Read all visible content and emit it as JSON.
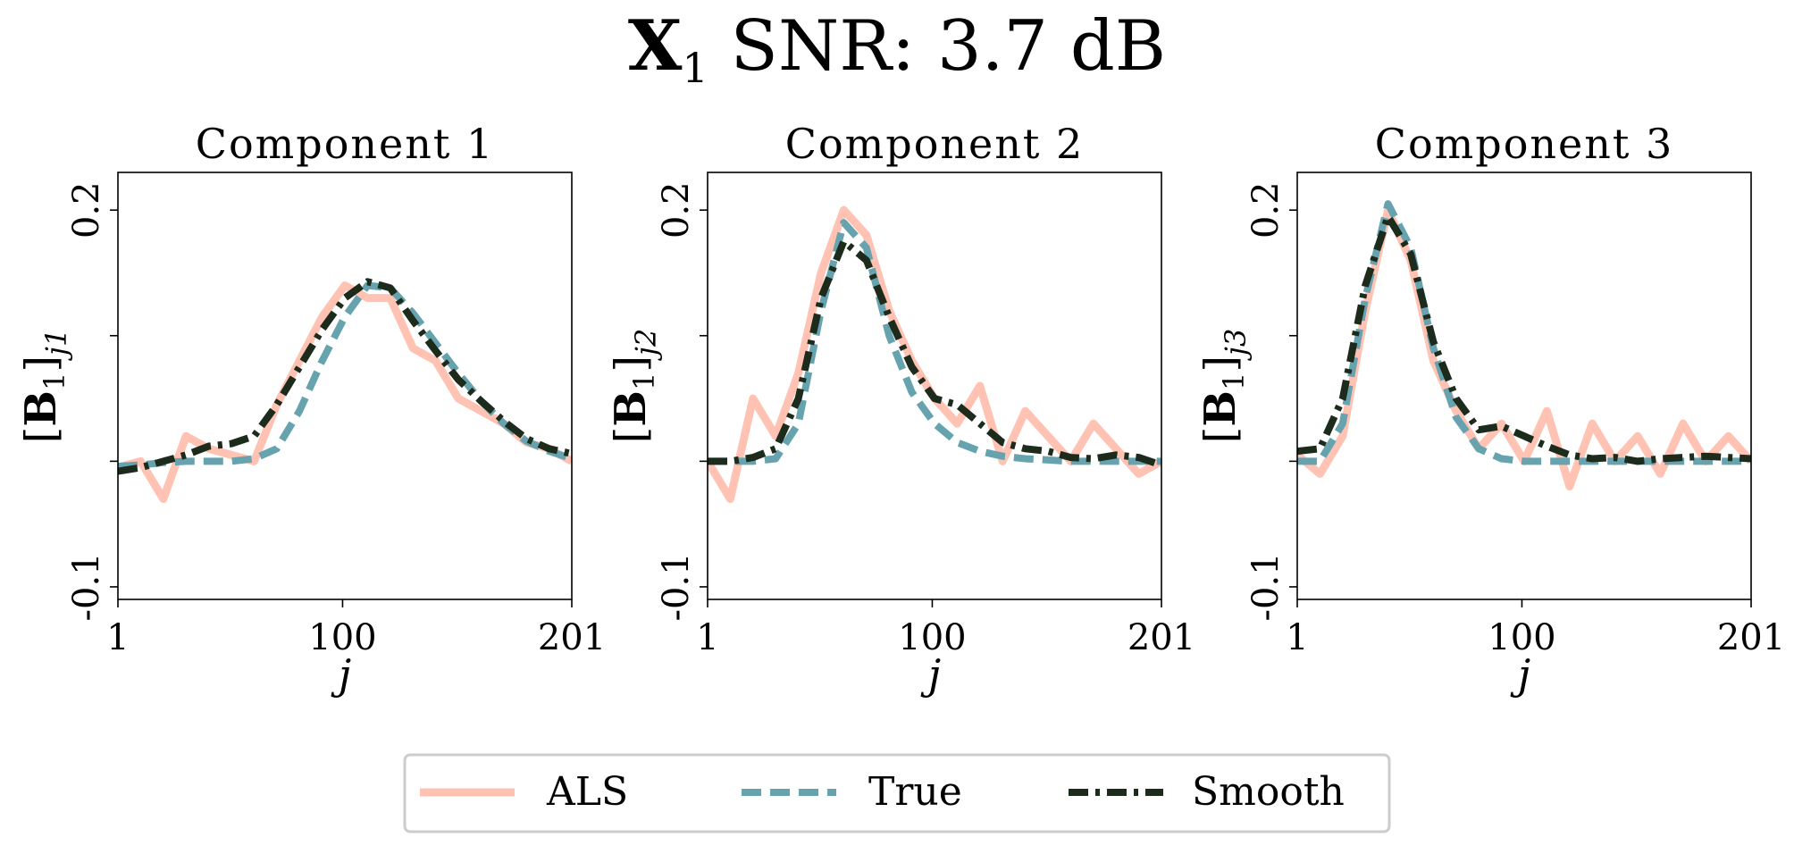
{
  "figure": {
    "title": "X₁ SNR: 3.7 dB",
    "title_parts": {
      "matrix": "X",
      "subscript": "1",
      "rest": " SNR: 3.7 dB"
    },
    "background": "#ffffff"
  },
  "legend": {
    "placement": "bottom-center",
    "entries": [
      "ALS",
      "True",
      "Smooth"
    ]
  },
  "colors": {
    "ALS": "#FFC2B3",
    "True": "#66A3AE",
    "Smooth": "#1C2B1C"
  },
  "chart_data": [
    {
      "type": "line",
      "title": "Component 1",
      "xlabel": "j",
      "ylabel": "[B1]j1",
      "ylabel_parts": {
        "base": "B",
        "base_sub": "1",
        "sub": "j1"
      },
      "xlim": [
        1,
        201
      ],
      "ylim": [
        -0.11,
        0.23
      ],
      "xticks": [
        1,
        100,
        201
      ],
      "xticklabels": [
        "1",
        "100",
        "201"
      ],
      "yticks": [
        -0.1,
        0.0,
        0.1,
        0.2
      ],
      "yticklabels": [
        "-0.1",
        "",
        "",
        "0.2"
      ],
      "grid": false,
      "series": [
        {
          "name": "ALS",
          "style": "solid",
          "x": [
            1,
            11,
            21,
            31,
            41,
            51,
            61,
            71,
            81,
            91,
            101,
            111,
            121,
            131,
            141,
            151,
            161,
            171,
            181,
            191,
            201
          ],
          "y": [
            -0.005,
            0.0,
            -0.03,
            0.02,
            0.01,
            0.005,
            0.0,
            0.045,
            0.08,
            0.115,
            0.14,
            0.13,
            0.13,
            0.09,
            0.08,
            0.05,
            0.04,
            0.03,
            0.015,
            0.01,
            0.0
          ]
        },
        {
          "name": "True",
          "style": "dashed",
          "x": [
            1,
            11,
            21,
            31,
            41,
            51,
            61,
            71,
            81,
            91,
            101,
            111,
            121,
            131,
            141,
            151,
            161,
            171,
            181,
            191,
            201
          ],
          "y": [
            -0.004,
            -0.003,
            -0.001,
            0.0,
            0.0,
            0.0,
            0.002,
            0.01,
            0.04,
            0.08,
            0.115,
            0.14,
            0.138,
            0.118,
            0.094,
            0.07,
            0.048,
            0.03,
            0.016,
            0.008,
            0.002
          ]
        },
        {
          "name": "Smooth",
          "style": "dashdot",
          "x": [
            1,
            11,
            21,
            31,
            41,
            51,
            61,
            71,
            81,
            91,
            101,
            111,
            121,
            131,
            141,
            151,
            161,
            171,
            181,
            191,
            201
          ],
          "y": [
            -0.008,
            -0.005,
            0.0,
            0.005,
            0.012,
            0.014,
            0.02,
            0.045,
            0.075,
            0.105,
            0.13,
            0.143,
            0.138,
            0.112,
            0.088,
            0.065,
            0.048,
            0.032,
            0.018,
            0.01,
            0.006
          ]
        }
      ]
    },
    {
      "type": "line",
      "title": "Component 2",
      "xlabel": "j",
      "ylabel": "[B1]j2",
      "ylabel_parts": {
        "base": "B",
        "base_sub": "1",
        "sub": "j2"
      },
      "xlim": [
        1,
        201
      ],
      "ylim": [
        -0.11,
        0.23
      ],
      "xticks": [
        1,
        100,
        201
      ],
      "xticklabels": [
        "1",
        "100",
        "201"
      ],
      "yticks": [
        -0.1,
        0.0,
        0.1,
        0.2
      ],
      "yticklabels": [
        "-0.1",
        "",
        "",
        "0.2"
      ],
      "grid": false,
      "series": [
        {
          "name": "ALS",
          "style": "solid",
          "x": [
            1,
            11,
            21,
            31,
            41,
            51,
            61,
            71,
            81,
            91,
            101,
            111,
            121,
            131,
            141,
            151,
            161,
            171,
            181,
            191,
            201
          ],
          "y": [
            0.0,
            -0.03,
            0.05,
            0.02,
            0.07,
            0.15,
            0.2,
            0.18,
            0.12,
            0.08,
            0.05,
            0.03,
            0.06,
            0.0,
            0.04,
            0.02,
            0.0,
            0.03,
            0.01,
            -0.01,
            0.0
          ]
        },
        {
          "name": "True",
          "style": "dashed",
          "x": [
            1,
            11,
            21,
            31,
            41,
            51,
            61,
            71,
            81,
            91,
            101,
            111,
            121,
            131,
            141,
            151,
            161,
            171,
            181,
            191,
            201
          ],
          "y": [
            0.0,
            0.0,
            0.0,
            0.002,
            0.03,
            0.12,
            0.19,
            0.17,
            0.1,
            0.055,
            0.03,
            0.015,
            0.008,
            0.004,
            0.002,
            0.001,
            0.0,
            0.0,
            0.0,
            0.0,
            0.0
          ]
        },
        {
          "name": "Smooth",
          "style": "dashdot",
          "x": [
            1,
            11,
            21,
            31,
            41,
            51,
            61,
            71,
            81,
            91,
            101,
            111,
            121,
            131,
            141,
            151,
            161,
            171,
            181,
            191,
            201
          ],
          "y": [
            0.0,
            0.0,
            0.003,
            0.01,
            0.05,
            0.13,
            0.175,
            0.16,
            0.115,
            0.075,
            0.05,
            0.045,
            0.03,
            0.015,
            0.01,
            0.008,
            0.003,
            0.002,
            0.005,
            0.003,
            -0.003
          ]
        }
      ]
    },
    {
      "type": "line",
      "title": "Component 3",
      "xlabel": "j",
      "ylabel": "[B1]j3",
      "ylabel_parts": {
        "base": "B",
        "base_sub": "1",
        "sub": "j3"
      },
      "xlim": [
        1,
        201
      ],
      "ylim": [
        -0.11,
        0.23
      ],
      "xticks": [
        1,
        100,
        201
      ],
      "xticklabels": [
        "1",
        "100",
        "201"
      ],
      "yticks": [
        -0.1,
        0.0,
        0.1,
        0.2
      ],
      "yticklabels": [
        "-0.1",
        "",
        "",
        "0.2"
      ],
      "grid": false,
      "series": [
        {
          "name": "ALS",
          "style": "solid",
          "x": [
            1,
            11,
            21,
            31,
            41,
            51,
            61,
            71,
            81,
            91,
            101,
            111,
            121,
            131,
            141,
            151,
            161,
            171,
            181,
            191,
            201
          ],
          "y": [
            0.005,
            -0.01,
            0.02,
            0.12,
            0.2,
            0.16,
            0.08,
            0.04,
            0.01,
            0.03,
            0.0,
            0.04,
            -0.02,
            0.03,
            0.0,
            0.02,
            -0.01,
            0.03,
            0.0,
            0.02,
            0.0
          ]
        },
        {
          "name": "True",
          "style": "dashed",
          "x": [
            1,
            11,
            21,
            31,
            41,
            51,
            61,
            71,
            81,
            91,
            101,
            111,
            121,
            131,
            141,
            151,
            161,
            171,
            181,
            191,
            201
          ],
          "y": [
            0.0,
            0.0,
            0.03,
            0.13,
            0.205,
            0.17,
            0.09,
            0.035,
            0.01,
            0.002,
            0.0,
            0.0,
            0.0,
            0.0,
            0.0,
            0.0,
            0.0,
            0.0,
            0.0,
            0.0,
            0.0
          ]
        },
        {
          "name": "Smooth",
          "style": "dashdot",
          "x": [
            1,
            11,
            21,
            31,
            41,
            51,
            61,
            71,
            81,
            91,
            101,
            111,
            121,
            131,
            141,
            151,
            161,
            171,
            181,
            191,
            201
          ],
          "y": [
            0.008,
            0.01,
            0.05,
            0.14,
            0.195,
            0.165,
            0.095,
            0.05,
            0.025,
            0.028,
            0.02,
            0.012,
            0.005,
            0.002,
            0.003,
            0.0,
            0.002,
            0.003,
            0.004,
            0.003,
            0.002
          ]
        }
      ]
    }
  ]
}
